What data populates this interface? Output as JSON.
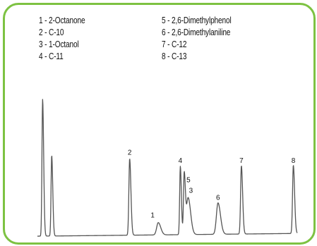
{
  "chart_data": {
    "type": "line",
    "title": "",
    "xlabel": "",
    "ylabel": "",
    "legend": [
      {
        "num": "1",
        "label": "1 - 2-Octanone"
      },
      {
        "num": "2",
        "label": "2 - C-10"
      },
      {
        "num": "3",
        "label": "3 - 1-Octanol"
      },
      {
        "num": "4",
        "label": "4 - C-11"
      },
      {
        "num": "5",
        "label": "5 - 2,6-Dimethylphenol"
      },
      {
        "num": "6",
        "label": "6 - 2,6-Dimethylaniline"
      },
      {
        "num": "7",
        "label": "7 - C-12"
      },
      {
        "num": "8",
        "label": "8 - C-13"
      }
    ],
    "peaks": [
      {
        "label": "",
        "rt": 0.02,
        "height": 1.0,
        "width": 0.0025
      },
      {
        "label": "",
        "rt": 0.055,
        "height": 0.59,
        "width": 0.0025
      },
      {
        "label": "2",
        "rt": 0.355,
        "height": 0.56,
        "width": 0.003
      },
      {
        "label": "1",
        "rt": 0.465,
        "height": 0.09,
        "width": 0.006
      },
      {
        "label": "4",
        "rt": 0.55,
        "height": 0.5,
        "width": 0.0025
      },
      {
        "label": "5",
        "rt": 0.565,
        "height": 0.45,
        "width": 0.0028
      },
      {
        "label": "3",
        "rt": 0.58,
        "height": 0.27,
        "width": 0.006
      },
      {
        "label": "6",
        "rt": 0.695,
        "height": 0.23,
        "width": 0.006
      },
      {
        "label": "7",
        "rt": 0.785,
        "height": 0.5,
        "width": 0.003
      },
      {
        "label": "8",
        "rt": 0.985,
        "height": 0.5,
        "width": 0.003
      }
    ],
    "grid": false
  }
}
